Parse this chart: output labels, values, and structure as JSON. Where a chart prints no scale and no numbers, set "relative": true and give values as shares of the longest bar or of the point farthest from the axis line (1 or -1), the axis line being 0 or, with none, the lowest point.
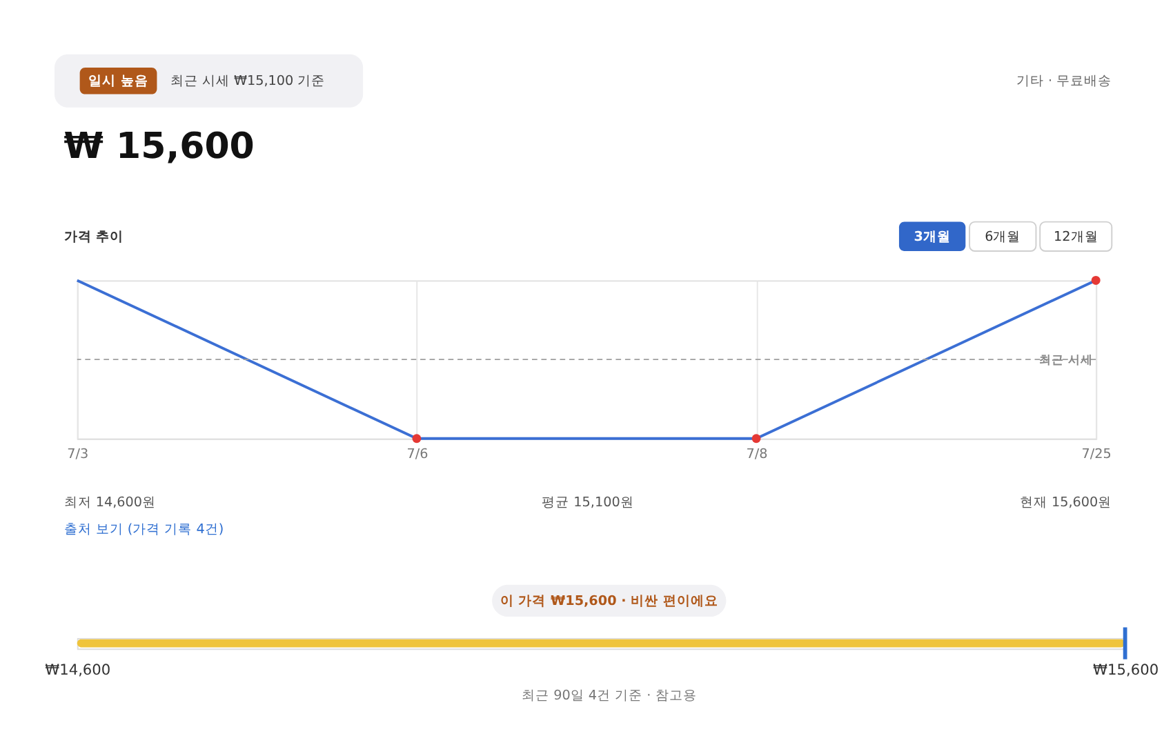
{
  "chart_data": [
    {
      "type": "line",
      "title": "₩ 15,600",
      "subtitle": "가격 추이",
      "categories": [
        "7/3",
        "7/6",
        "7/8",
        "7/25"
      ],
      "relative": true,
      "series": [
        {
          "color": "#3b6fd4",
          "values": [
            1,
            0,
            0,
            1
          ]
        }
      ],
      "colors": [
        null,
        "#e53935",
        "#e53935",
        "#e53935"
      ],
      "tick_labels": "x",
      "grid": "x",
      "marker": "circle",
      "line_style": "solid",
      "ref_lines": [
        {
          "axis": "y",
          "value": 0.5,
          "label": "최근 시세",
          "color": "#9e9e9e",
          "line_style": "dashed"
        }
      ],
      "annotations": [
        "일시 높음",
        "최근 시세 ₩15,100 기준",
        "기타 · 무료배송",
        "3개월",
        "6개월",
        "12개월",
        "최저 14,600원",
        "평균 15,100원",
        "현재 15,600원",
        "출처 보기 (가격 기록 4건)"
      ]
    },
    {
      "type": "bar",
      "orientation": "horizontal",
      "categories": [
        null
      ],
      "base": [
        14600
      ],
      "values": [
        1000
      ],
      "xlim": [
        14600,
        15600
      ],
      "xticks": [
        {
          "value": 14600,
          "label": "₩14,600"
        },
        {
          "value": 15600,
          "label": "₩15,600"
        }
      ],
      "colors": [
        "#efc43c"
      ],
      "ref_lines": [
        {
          "axis": "x",
          "value": 15600,
          "color": "#2f6fd1"
        }
      ],
      "annotations": [
        "이 가격 ₩15,600 · 비싼 편이에요",
        "최근 90일 4건 기준 · 참고용"
      ]
    }
  ]
}
